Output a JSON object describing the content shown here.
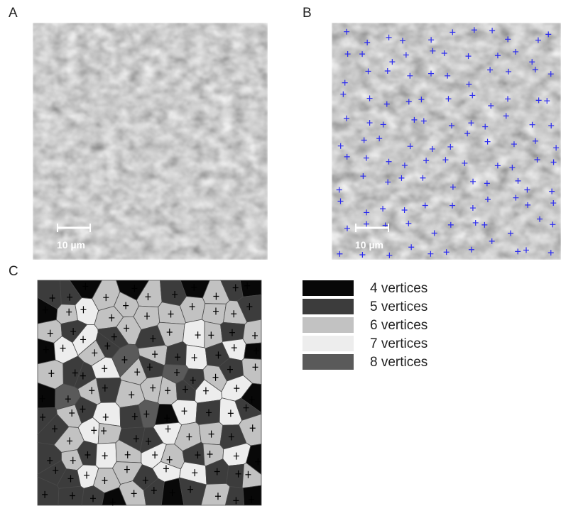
{
  "panels": {
    "a": {
      "label": "A",
      "scale_bar": "10 µm"
    },
    "b": {
      "label": "B",
      "scale_bar": "10 µm"
    },
    "c": {
      "label": "C"
    }
  },
  "legend": {
    "items": [
      {
        "label": "4 vertices",
        "color": "#080808"
      },
      {
        "label": "5 vertices",
        "color": "#3c3c3c"
      },
      {
        "label": "6 vertices",
        "color": "#c2c2c2"
      },
      {
        "label": "7 vertices",
        "color": "#ededed"
      },
      {
        "label": "8 vertices",
        "color": "#5a5a5a"
      }
    ]
  }
}
